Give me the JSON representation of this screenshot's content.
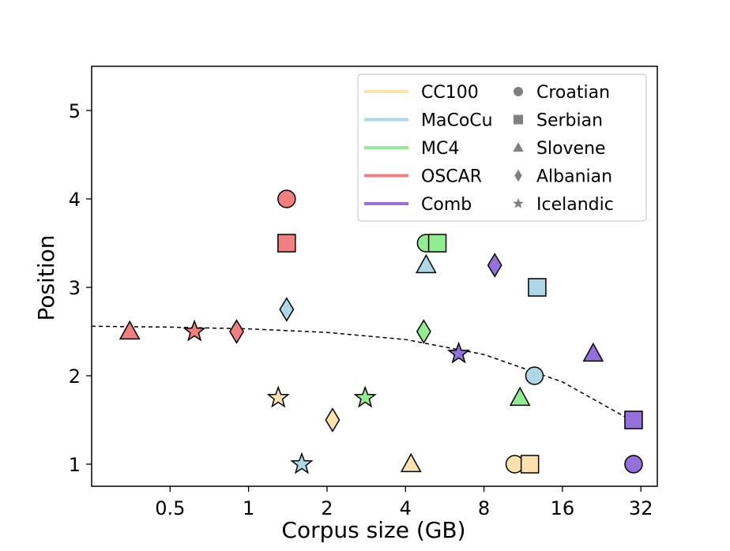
{
  "chart_data": {
    "type": "scatter",
    "title": "",
    "xlabel": "Corpus size (GB)",
    "ylabel": "Position",
    "x_scale": "log2",
    "xlim": [
      0.25,
      37
    ],
    "ylim": [
      0.75,
      5.5
    ],
    "x_ticks": [
      0.5,
      1,
      2,
      4,
      8,
      16,
      32
    ],
    "x_tick_labels": [
      "0.5",
      "1",
      "2",
      "4",
      "8",
      "16",
      "32"
    ],
    "y_ticks": [
      1,
      2,
      3,
      4,
      5
    ],
    "y_tick_labels": [
      "1",
      "2",
      "3",
      "4",
      "5"
    ],
    "grid": false,
    "legend_position": "top-right",
    "sources": [
      {
        "name": "CC100",
        "color": "#fde2ae"
      },
      {
        "name": "MaCoCu",
        "color": "#add8e6"
      },
      {
        "name": "MC4",
        "color": "#90ee90"
      },
      {
        "name": "OSCAR",
        "color": "#f08080"
      },
      {
        "name": "Comb",
        "color": "#9370db"
      }
    ],
    "languages": [
      {
        "name": "Croatian",
        "marker": "circle"
      },
      {
        "name": "Serbian",
        "marker": "square"
      },
      {
        "name": "Slovene",
        "marker": "triangle"
      },
      {
        "name": "Albanian",
        "marker": "diamond"
      },
      {
        "name": "Icelandic",
        "marker": "star"
      }
    ],
    "points": [
      {
        "source": "CC100",
        "language": "Croatian",
        "x": 10.5,
        "y": 1
      },
      {
        "source": "CC100",
        "language": "Serbian",
        "x": 12,
        "y": 1
      },
      {
        "source": "CC100",
        "language": "Slovene",
        "x": 4.2,
        "y": 1
      },
      {
        "source": "CC100",
        "language": "Albanian",
        "x": 2.1,
        "y": 1.5
      },
      {
        "source": "CC100",
        "language": "Icelandic",
        "x": 1.3,
        "y": 1.75
      },
      {
        "source": "MaCoCu",
        "language": "Croatian",
        "x": 12.5,
        "y": 2
      },
      {
        "source": "MaCoCu",
        "language": "Serbian",
        "x": 12.8,
        "y": 3
      },
      {
        "source": "MaCoCu",
        "language": "Slovene",
        "x": 4.8,
        "y": 3.25
      },
      {
        "source": "MaCoCu",
        "language": "Albanian",
        "x": 1.4,
        "y": 2.75
      },
      {
        "source": "MaCoCu",
        "language": "Icelandic",
        "x": 1.6,
        "y": 1
      },
      {
        "source": "MC4",
        "language": "Croatian",
        "x": 4.8,
        "y": 3.5
      },
      {
        "source": "MC4",
        "language": "Serbian",
        "x": 5.3,
        "y": 3.5
      },
      {
        "source": "MC4",
        "language": "Slovene",
        "x": 11,
        "y": 1.75
      },
      {
        "source": "MC4",
        "language": "Albanian",
        "x": 4.7,
        "y": 2.5
      },
      {
        "source": "MC4",
        "language": "Icelandic",
        "x": 2.8,
        "y": 1.75
      },
      {
        "source": "OSCAR",
        "language": "Croatian",
        "x": 1.4,
        "y": 4
      },
      {
        "source": "OSCAR",
        "language": "Serbian",
        "x": 1.4,
        "y": 3.5
      },
      {
        "source": "OSCAR",
        "language": "Slovene",
        "x": 0.35,
        "y": 2.5
      },
      {
        "source": "OSCAR",
        "language": "Albanian",
        "x": 0.9,
        "y": 2.5
      },
      {
        "source": "OSCAR",
        "language": "Icelandic",
        "x": 0.62,
        "y": 2.5
      },
      {
        "source": "Comb",
        "language": "Croatian",
        "x": 30,
        "y": 1
      },
      {
        "source": "Comb",
        "language": "Serbian",
        "x": 30,
        "y": 1.5
      },
      {
        "source": "Comb",
        "language": "Slovene",
        "x": 21,
        "y": 2.25
      },
      {
        "source": "Comb",
        "language": "Albanian",
        "x": 8.8,
        "y": 3.25
      },
      {
        "source": "Comb",
        "language": "Icelandic",
        "x": 6.4,
        "y": 2.25
      }
    ],
    "trend_line": {
      "style": "dashed",
      "x": [
        0.25,
        0.5,
        1,
        2,
        4,
        8,
        16,
        28
      ],
      "y": [
        2.56,
        2.55,
        2.53,
        2.49,
        2.41,
        2.24,
        1.93,
        1.53
      ]
    }
  }
}
